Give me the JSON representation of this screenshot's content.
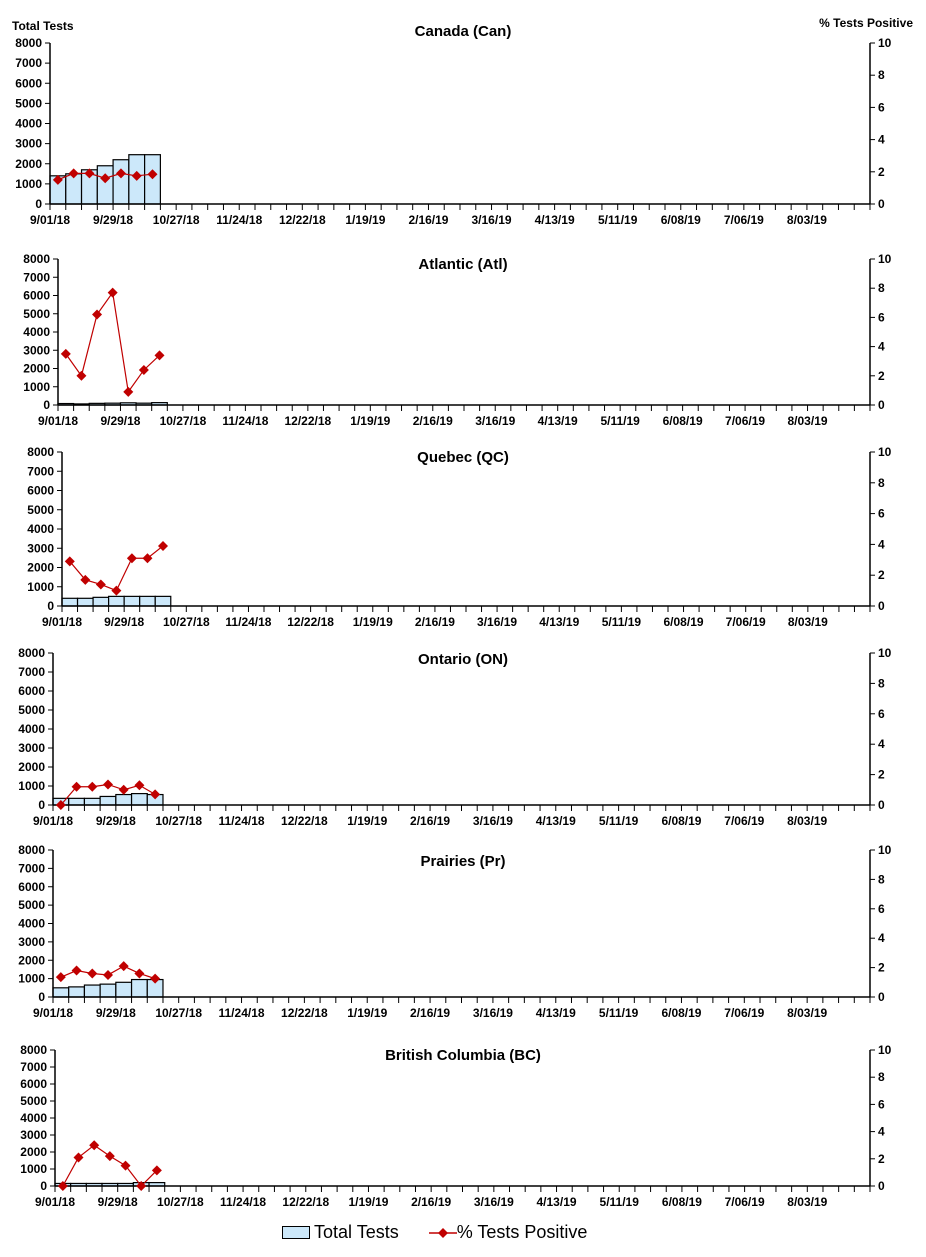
{
  "chart_data": [
    {
      "type": "bar+line",
      "title": "Canada (Can)",
      "ylabel": "Total Tests",
      "y2label": "% Tests Positive",
      "total_tests": [
        1400,
        1500,
        1700,
        1900,
        2200,
        2450,
        2450
      ],
      "pct_positive": [
        1.5,
        1.9,
        1.9,
        1.6,
        1.9,
        1.75,
        1.85
      ]
    },
    {
      "type": "bar+line",
      "title": "Atlantic (Atl)",
      "total_tests": [
        80,
        60,
        90,
        100,
        120,
        100,
        130
      ],
      "pct_positive": [
        3.5,
        2.0,
        6.2,
        7.7,
        0.9,
        2.4,
        3.4
      ]
    },
    {
      "type": "bar+line",
      "title": "Quebec (QC)",
      "total_tests": [
        400,
        400,
        450,
        500,
        500,
        500,
        500
      ],
      "pct_positive": [
        2.9,
        1.7,
        1.4,
        1.0,
        3.1,
        3.1,
        3.9
      ]
    },
    {
      "type": "bar+line",
      "title": "Ontario (ON)",
      "total_tests": [
        350,
        350,
        350,
        450,
        550,
        600,
        550
      ],
      "pct_positive": [
        0,
        1.2,
        1.2,
        1.35,
        1.0,
        1.3,
        0.7
      ]
    },
    {
      "type": "bar+line",
      "title": "Prairies (Pr)",
      "total_tests": [
        500,
        550,
        650,
        700,
        800,
        950,
        950
      ],
      "pct_positive": [
        1.35,
        1.8,
        1.6,
        1.5,
        2.1,
        1.6,
        1.25
      ]
    },
    {
      "type": "bar+line",
      "title": "British Columbia (BC)",
      "total_tests": [
        150,
        150,
        150,
        150,
        150,
        200,
        200
      ],
      "pct_positive": [
        0,
        2.1,
        3.0,
        2.2,
        1.5,
        0,
        1.15
      ]
    }
  ],
  "shared": {
    "weeks_total": 52,
    "x_tick_labels": [
      "9/01/18",
      "9/29/18",
      "10/27/18",
      "11/24/18",
      "12/22/18",
      "1/19/19",
      "2/16/19",
      "3/16/19",
      "4/13/19",
      "5/11/19",
      "6/08/19",
      "7/06/19",
      "8/03/19"
    ],
    "y_ticks": [
      0,
      1000,
      2000,
      3000,
      4000,
      5000,
      6000,
      7000,
      8000
    ],
    "ylim": [
      0,
      8000
    ],
    "y2_ticks": [
      0,
      2,
      4,
      6,
      8,
      10
    ],
    "y2lim": [
      0,
      10
    ],
    "bar_color": "#cce8fa",
    "line_color": "#c00000"
  },
  "legend": {
    "bars": "Total Tests",
    "line": "% Tests Positive"
  }
}
